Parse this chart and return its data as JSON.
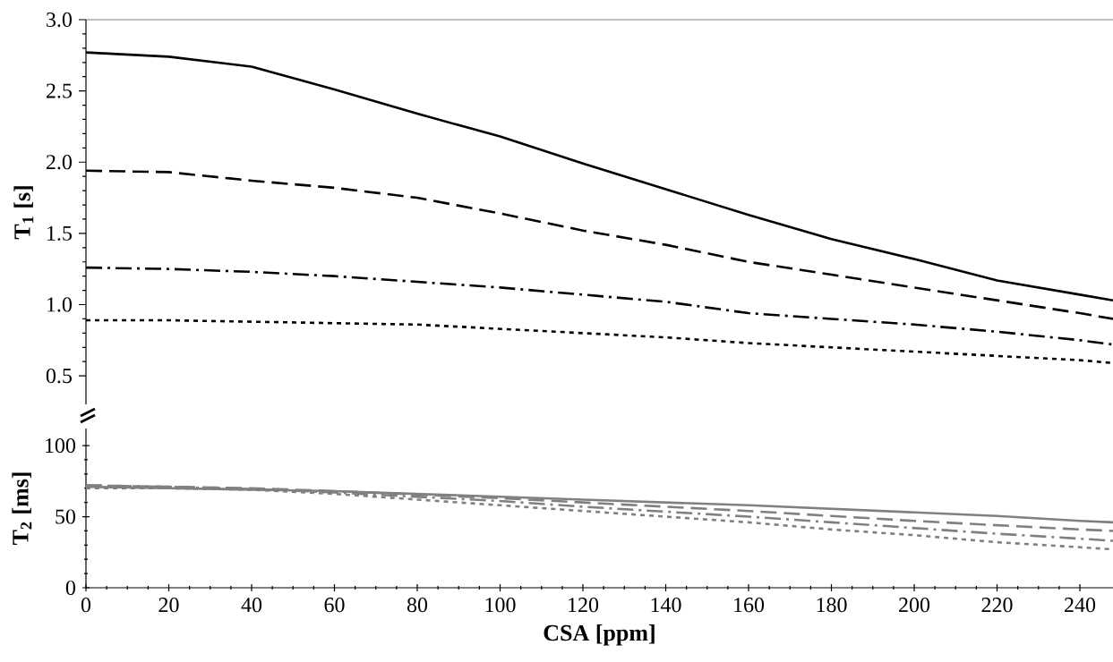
{
  "chart_data": [
    {
      "type": "line",
      "ylabel": "T$_{1}$ [s]",
      "tick_labels": "y",
      "xlim": [
        0,
        248
      ],
      "ylim": [
        0.3,
        3.0
      ],
      "yticks": [
        0.5,
        {
          "value": 1,
          "label": "1.0"
        },
        1.5,
        {
          "value": 2,
          "label": "2.0"
        },
        2.5,
        {
          "value": 3,
          "label": "3.0"
        }
      ],
      "x": [
        0,
        20,
        40,
        60,
        80,
        100,
        120,
        140,
        160,
        180,
        200,
        220,
        240,
        248
      ],
      "series": [
        {
          "color": "#000000",
          "line_style": "solid",
          "values": [
            2.77,
            2.74,
            2.67,
            2.51,
            2.34,
            2.18,
            1.99,
            1.81,
            1.63,
            1.46,
            1.32,
            1.17,
            1.07,
            1.03
          ]
        },
        {
          "color": "#000000",
          "line_style": "dashed",
          "values": [
            1.94,
            1.93,
            1.87,
            1.82,
            1.75,
            1.64,
            1.52,
            1.42,
            1.3,
            1.21,
            1.12,
            1.03,
            0.94,
            0.9
          ]
        },
        {
          "color": "#000000",
          "line_style": "dashdot",
          "values": [
            1.26,
            1.25,
            1.23,
            1.2,
            1.16,
            1.12,
            1.07,
            1.02,
            0.94,
            0.9,
            0.86,
            0.81,
            0.75,
            0.72
          ]
        },
        {
          "color": "#000000",
          "line_style": "dotted",
          "values": [
            0.89,
            0.89,
            0.88,
            0.87,
            0.86,
            0.83,
            0.8,
            0.77,
            0.73,
            0.7,
            0.67,
            0.64,
            0.61,
            0.59
          ]
        }
      ]
    },
    {
      "type": "line",
      "xlabel": "CSA [ppm]",
      "ylabel": "T$_{2}$ [ms]",
      "xlim": [
        0,
        248
      ],
      "ylim": [
        0,
        112
      ],
      "xticks": [
        0,
        20,
        40,
        60,
        80,
        100,
        120,
        140,
        160,
        180,
        200,
        220,
        240
      ],
      "yticks": [
        0,
        50,
        100
      ],
      "x": [
        0,
        20,
        40,
        60,
        80,
        100,
        120,
        140,
        160,
        180,
        200,
        220,
        240,
        248
      ],
      "series": [
        {
          "color": "#808080",
          "line_style": "solid",
          "values": [
            71,
            70,
            69,
            68,
            66,
            64,
            62,
            60,
            58,
            55.5,
            53,
            50.5,
            47,
            46
          ]
        },
        {
          "color": "#808080",
          "line_style": "dashed",
          "values": [
            72,
            71,
            70,
            68,
            65.5,
            63,
            60,
            57,
            54,
            50.5,
            47,
            44,
            41,
            40
          ]
        },
        {
          "color": "#808080",
          "line_style": "dashdot",
          "values": [
            72,
            71,
            69.5,
            67,
            64,
            61,
            57,
            53.5,
            50,
            46,
            42,
            38,
            34.5,
            33
          ]
        },
        {
          "color": "#808080",
          "line_style": "dotted",
          "values": [
            70,
            70,
            69,
            66,
            62,
            58,
            54,
            50,
            46,
            41,
            37,
            32,
            28.5,
            27
          ]
        }
      ]
    }
  ]
}
